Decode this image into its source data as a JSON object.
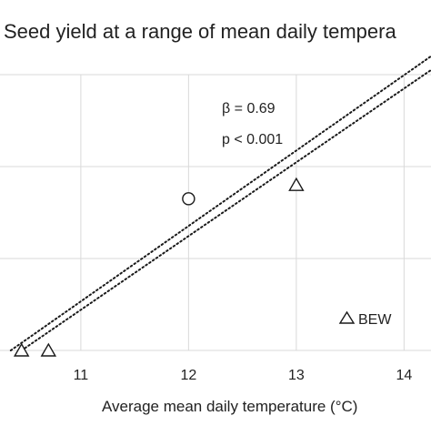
{
  "chart_data": {
    "type": "scatter",
    "title": "Seed yield at a range of mean daily tempera",
    "xlabel": "Average mean daily temperature (°C)",
    "ylabel": "",
    "xlim": [
      10.25,
      14.25
    ],
    "ylim": [
      0,
      3.0
    ],
    "x_ticks": [
      11,
      12,
      13,
      14
    ],
    "x_tick_labels": [
      "11",
      "12",
      "13",
      "14"
    ],
    "y_gridlines": [
      0,
      1,
      2,
      3
    ],
    "grid": true,
    "series": [
      {
        "name": "BEW",
        "marker": "triangle",
        "points": [
          [
            10.45,
            0.0
          ],
          [
            10.7,
            0.0
          ],
          [
            13.0,
            1.8
          ]
        ]
      },
      {
        "marker": "circle",
        "points": [
          [
            12.0,
            1.65
          ]
        ]
      }
    ],
    "fit_lines": [
      {
        "style": "dotted",
        "points": [
          [
            10.35,
            0.0
          ],
          [
            14.25,
            3.2
          ]
        ]
      },
      {
        "style": "dotted",
        "points": [
          [
            10.45,
            0.0
          ],
          [
            14.25,
            3.05
          ]
        ]
      }
    ],
    "annotations": [
      "β = 0.69",
      "p < 0.001"
    ],
    "legend": {
      "position": "bottom-right",
      "entries": [
        "BEW"
      ]
    },
    "colors": {
      "marker_stroke": "#1a1a1a",
      "grid": "#d9d9d9",
      "text": "#222222"
    }
  }
}
